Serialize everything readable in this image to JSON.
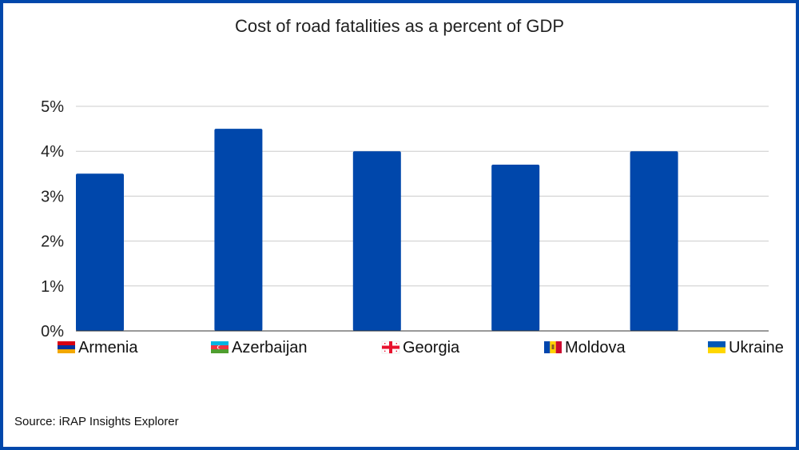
{
  "chart_data": {
    "type": "bar",
    "title": "Cost of road fatalities as a percent of GDP",
    "categories": [
      "Armenia",
      "Azerbaijan",
      "Georgia",
      "Moldova",
      "Ukraine"
    ],
    "values": [
      3.5,
      4.5,
      4.0,
      3.7,
      4.0
    ],
    "ylim": [
      0,
      5
    ],
    "yticks": [
      0,
      1,
      2,
      3,
      4,
      5
    ],
    "ytick_labels": [
      "0%",
      "1%",
      "2%",
      "3%",
      "4%",
      "5%"
    ],
    "grid": true,
    "legend": "none",
    "colors": {
      "bar": "#0047ab",
      "grid": "#cccccc",
      "frame": "#0047ab"
    },
    "category_icons": [
      "armenia-flag-icon",
      "azerbaijan-flag-icon",
      "georgia-flag-icon",
      "moldova-flag-icon",
      "ukraine-flag-icon"
    ]
  },
  "footer": {
    "source": "Source: iRAP Insights Explorer"
  }
}
